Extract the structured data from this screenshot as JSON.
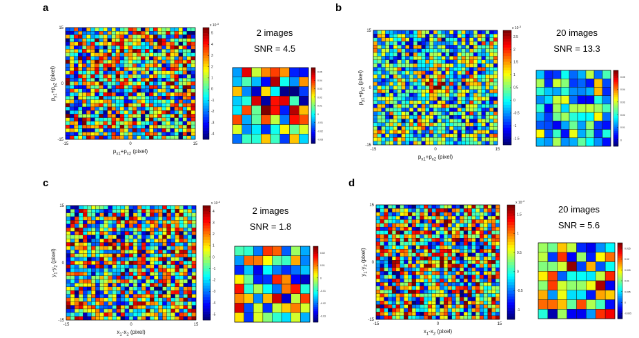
{
  "colors": {
    "colormap": [
      "#00007f",
      "#0000ff",
      "#007fff",
      "#00ffff",
      "#7fff7f",
      "#ffff00",
      "#ff7f00",
      "#ff0000",
      "#7f0000"
    ],
    "grid_line": "#1a1a1a",
    "text": "#111111"
  },
  "chart_data": [
    {
      "panel": "a",
      "type": "heatmap",
      "grid_size": 31,
      "seed": 11,
      "hotspot": 0.9,
      "x_ticks": [
        "-15",
        "0",
        "15"
      ],
      "y_ticks": [
        "15",
        "0",
        "-15"
      ],
      "xlabel": {
        "base": "p",
        "sub1": "x1",
        "mid": "+p",
        "sub2": "x2",
        "tail": " (pixel)"
      },
      "ylabel": {
        "base": "p",
        "sub1": "y1",
        "mid": "+p",
        "sub2": "y2",
        "tail": " (pixel)"
      },
      "colorbar": {
        "exponent": "x 10",
        "power": "-3",
        "ticks": [
          "5",
          "4",
          "3",
          "2",
          "1",
          "0",
          "-1",
          "-2",
          "-3",
          "-4"
        ],
        "range": [
          -4,
          5
        ]
      },
      "annotation": {
        "count": "2 images",
        "snr": "SNR = 4.5"
      },
      "inset": {
        "grid_size": 8,
        "seed": 101,
        "colorbar_ticks": [
          "0.05",
          "0.04",
          "0.03",
          "0.02",
          "0.01",
          "0",
          "-0.01",
          "-0.02",
          "-0.03"
        ]
      }
    },
    {
      "panel": "b",
      "type": "heatmap",
      "grid_size": 31,
      "seed": 23,
      "hotspot": 2.4,
      "x_ticks": [
        "-15",
        "0",
        "15"
      ],
      "y_ticks": [
        "15",
        "0",
        "-15"
      ],
      "xlabel": {
        "base": "p",
        "sub1": "x1",
        "mid": "+p",
        "sub2": "x2",
        "tail": " (pixel)"
      },
      "ylabel": {
        "base": "p",
        "sub1": "y1",
        "mid": "+p",
        "sub2": "y2",
        "tail": " (pixel)"
      },
      "colorbar": {
        "exponent": "x 10",
        "power": "-3",
        "ticks": [
          "2.5",
          "2",
          "1.5",
          "1",
          "0.5",
          "0",
          "-0.5",
          "-1",
          "-1.5"
        ],
        "range": [
          -1.5,
          2.5
        ]
      },
      "annotation": {
        "count": "20 images",
        "snr": "SNR = 13.3"
      },
      "inset": {
        "grid_size": 9,
        "seed": 202,
        "colorbar_ticks": [
          "0.05",
          "0.04",
          "0.03",
          "0.02",
          "0.01",
          "0"
        ]
      }
    },
    {
      "panel": "c",
      "type": "heatmap",
      "grid_size": 31,
      "seed": 37,
      "hotspot": 0.3,
      "x_ticks": [
        "-15",
        "0",
        "15"
      ],
      "y_ticks": [
        "15",
        "0",
        "-15"
      ],
      "xlabel": {
        "base": "x",
        "sub1": "1",
        "mid": "-x",
        "sub2": "2",
        "tail": " (pixel)"
      },
      "ylabel": {
        "base": "y",
        "sub1": "1",
        "mid": "-y",
        "sub2": "2",
        "tail": " (pixel)"
      },
      "colorbar": {
        "exponent": "x 10",
        "power": "-4",
        "ticks": [
          "4",
          "3",
          "2",
          "1",
          "0",
          "-1",
          "-2",
          "-3",
          "-4",
          "-5"
        ],
        "range": [
          -5,
          4
        ]
      },
      "annotation": {
        "count": "2 images",
        "snr": "SNR = 1.8"
      },
      "inset": {
        "grid_size": 8,
        "seed": 303,
        "colorbar_ticks": [
          "0.02",
          "0.01",
          "0",
          "-0.01",
          "-0.02",
          "-0.03"
        ]
      }
    },
    {
      "panel": "d",
      "type": "heatmap",
      "grid_size": 31,
      "seed": 49,
      "hotspot": 1.2,
      "x_ticks": [
        "-15",
        "0",
        "15"
      ],
      "y_ticks": [
        "15",
        "0",
        "-15"
      ],
      "xlabel": {
        "base": "x",
        "sub1": "1",
        "mid": "-x",
        "sub2": "2",
        "tail": " (pixel)"
      },
      "ylabel": {
        "base": "y",
        "sub1": "1",
        "mid": "-y",
        "sub2": "2",
        "tail": " (pixel)"
      },
      "colorbar": {
        "exponent": "x 10",
        "power": "-4",
        "ticks": [
          "1.5",
          "1",
          "0.5",
          "0",
          "-0.5",
          "-1"
        ],
        "range": [
          -1.2,
          1.8
        ]
      },
      "annotation": {
        "count": "20 images",
        "snr": "SNR = 5.6"
      },
      "inset": {
        "grid_size": 8,
        "seed": 404,
        "colorbar_ticks": [
          "0.025",
          "0.02",
          "0.015",
          "0.01",
          "0.005",
          "0",
          "-0.005"
        ]
      }
    }
  ]
}
